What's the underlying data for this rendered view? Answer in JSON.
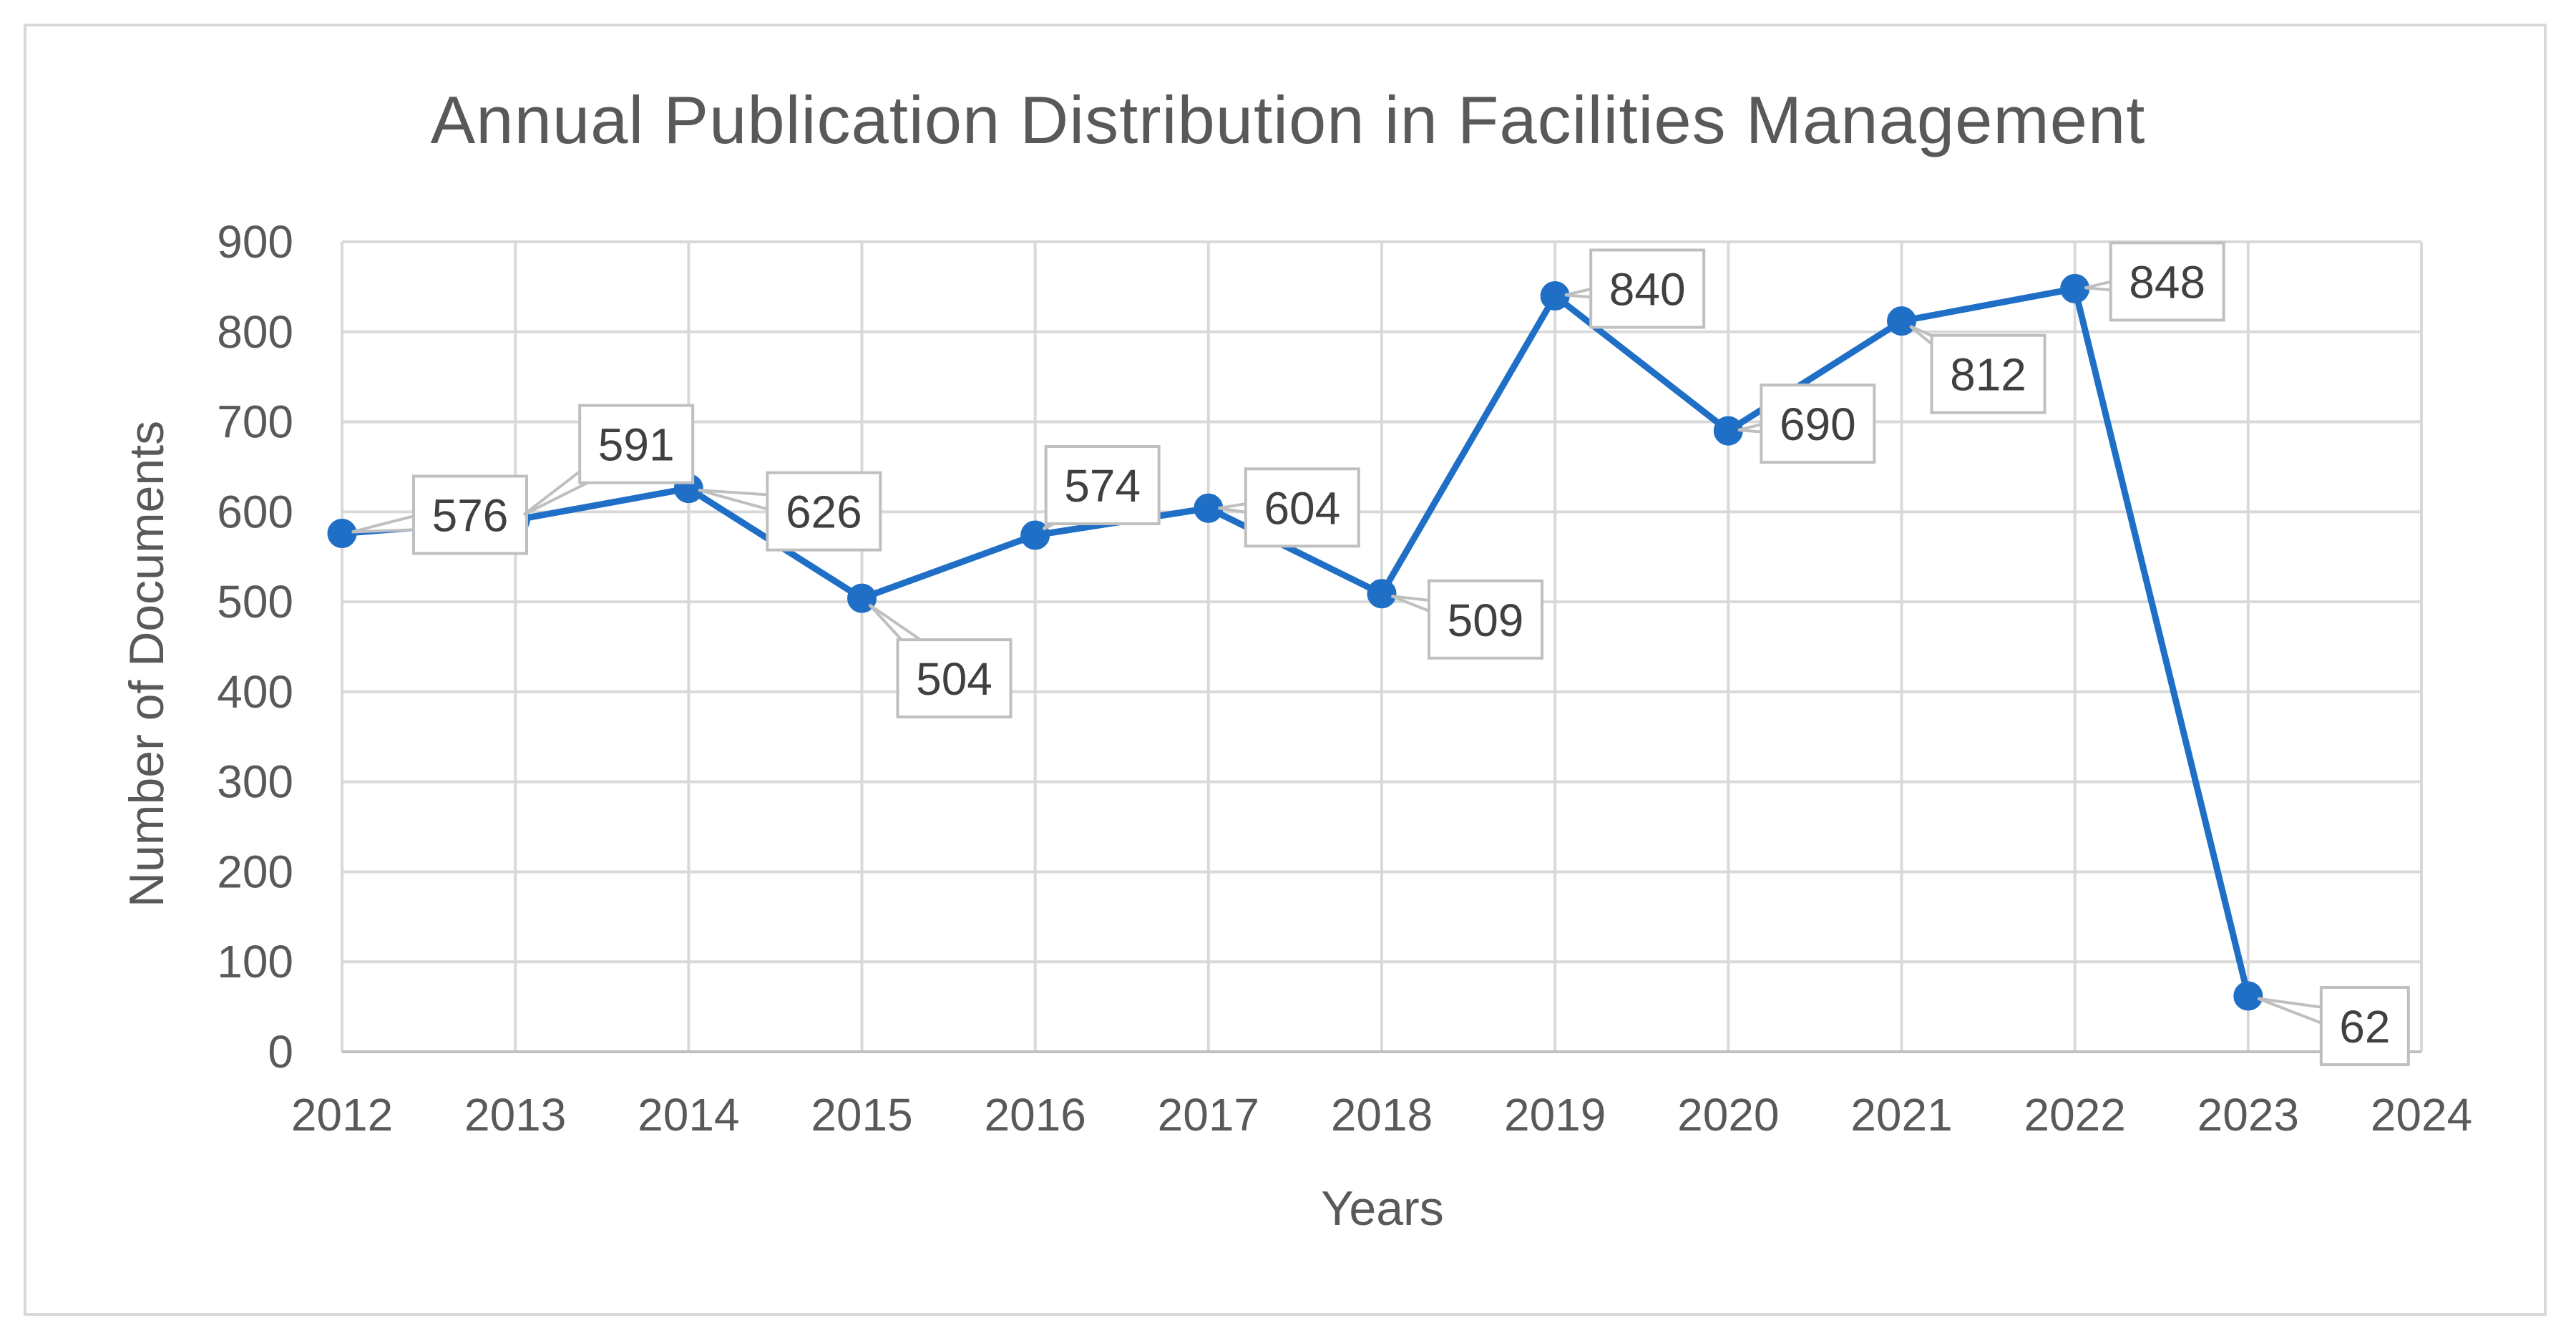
{
  "colors": {
    "series": "#1f6fc6",
    "text": "#595959",
    "grid": "#d9d9d9"
  },
  "chart_data": {
    "type": "line",
    "title": "Annual Publication Distribution in Facilities Management",
    "xlabel": "Years",
    "ylabel": "Number of Documents",
    "x": [
      2012,
      2013,
      2014,
      2015,
      2016,
      2017,
      2018,
      2019,
      2020,
      2021,
      2022,
      2023
    ],
    "xlim": [
      2012,
      2024
    ],
    "x_ticks": [
      "2012",
      "2013",
      "2014",
      "2015",
      "2016",
      "2017",
      "2018",
      "2019",
      "2020",
      "2021",
      "2022",
      "2023",
      "2024"
    ],
    "ylim": [
      0,
      900
    ],
    "y_ticks": [
      "0",
      "100",
      "200",
      "300",
      "400",
      "500",
      "600",
      "700",
      "800",
      "900"
    ],
    "grid": true,
    "legend": "none",
    "series": [
      {
        "name": "Documents",
        "values": [
          576,
          591,
          626,
          504,
          574,
          604,
          509,
          840,
          690,
          812,
          848,
          62
        ],
        "labels": [
          "576",
          "591",
          "626",
          "504",
          "574",
          "604",
          "509",
          "840",
          "690",
          "812",
          "848",
          "62"
        ]
      }
    ]
  }
}
